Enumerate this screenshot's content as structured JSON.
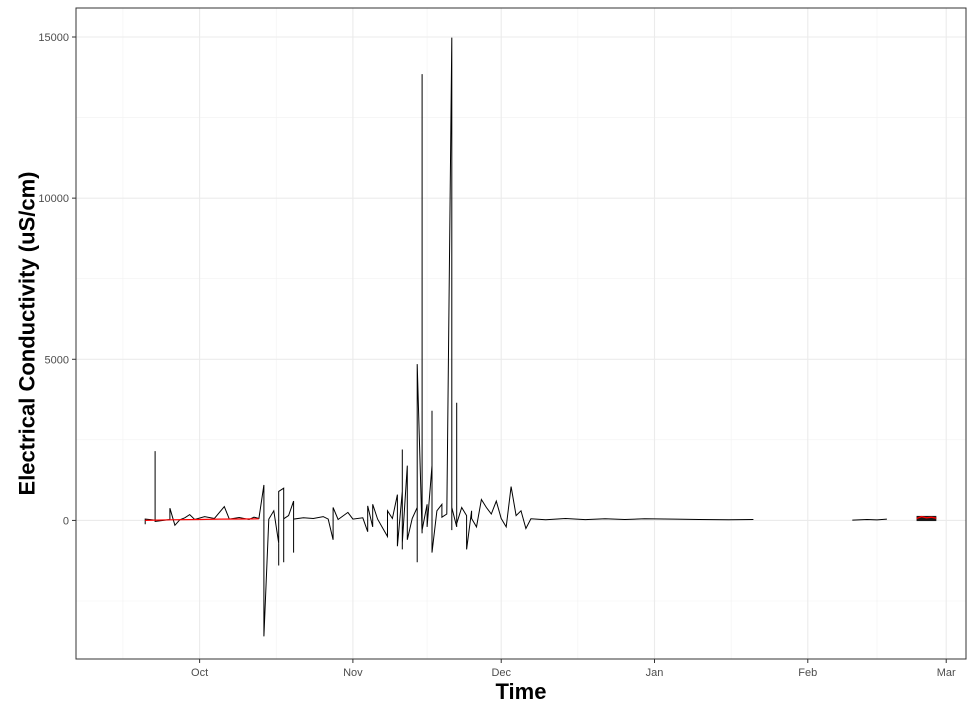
{
  "chart_data": {
    "type": "line",
    "xlabel": "Time",
    "ylabel": "Electrical Conductivity (uS/cm)",
    "title": "",
    "x_axis_kind": "date",
    "xlim": [
      "2017-09-06",
      "2018-03-05"
    ],
    "ylim": [
      -4300,
      15900
    ],
    "x_ticks": [
      {
        "date": "2017-10-01",
        "label": "Oct"
      },
      {
        "date": "2017-11-01",
        "label": "Nov"
      },
      {
        "date": "2017-12-01",
        "label": "Dec"
      },
      {
        "date": "2018-01-01",
        "label": "Jan"
      },
      {
        "date": "2018-02-01",
        "label": "Feb"
      },
      {
        "date": "2018-03-01",
        "label": "Mar"
      }
    ],
    "y_ticks": [
      0,
      5000,
      10000,
      15000
    ],
    "y_tick_labels": [
      "0",
      "5000",
      "10000",
      "15000"
    ],
    "grid": true,
    "legend": "none",
    "series": [
      {
        "color": "#000000",
        "segments": [
          [
            [
              "2017-09-20",
              -120
            ],
            [
              "2017-09-20",
              40
            ],
            [
              "2017-09-22",
              10
            ],
            [
              "2017-09-22",
              2150
            ],
            [
              "2017-09-22",
              -30
            ],
            [
              "2017-09-25",
              30
            ],
            [
              "2017-09-25",
              380
            ],
            [
              "2017-09-26",
              -150
            ],
            [
              "2017-09-27",
              20
            ],
            [
              "2017-09-28",
              80
            ],
            [
              "2017-09-29",
              180
            ],
            [
              "2017-09-30",
              30
            ],
            [
              "2017-10-02",
              120
            ],
            [
              "2017-10-04",
              60
            ],
            [
              "2017-10-06",
              430
            ],
            [
              "2017-10-07",
              40
            ],
            [
              "2017-10-09",
              90
            ],
            [
              "2017-10-11",
              30
            ],
            [
              "2017-10-12",
              100
            ],
            [
              "2017-10-13",
              60
            ],
            [
              "2017-10-14",
              1100
            ],
            [
              "2017-10-14",
              -3600
            ],
            [
              "2017-10-15",
              40
            ],
            [
              "2017-10-16",
              300
            ],
            [
              "2017-10-17",
              -700
            ],
            [
              "2017-10-17",
              650
            ],
            [
              "2017-10-17",
              -1400
            ],
            [
              "2017-10-17",
              900
            ],
            [
              "2017-10-18",
              1000
            ],
            [
              "2017-10-18",
              -1300
            ],
            [
              "2017-10-18",
              50
            ],
            [
              "2017-10-19",
              150
            ],
            [
              "2017-10-20",
              600
            ],
            [
              "2017-10-20",
              -1000
            ],
            [
              "2017-10-20",
              40
            ],
            [
              "2017-10-22",
              80
            ],
            [
              "2017-10-24",
              60
            ],
            [
              "2017-10-26",
              120
            ],
            [
              "2017-10-27",
              40
            ],
            [
              "2017-10-28",
              -600
            ],
            [
              "2017-10-28",
              400
            ],
            [
              "2017-10-29",
              30
            ],
            [
              "2017-10-31",
              250
            ],
            [
              "2017-11-01",
              40
            ],
            [
              "2017-11-03",
              80
            ],
            [
              "2017-11-04",
              -350
            ],
            [
              "2017-11-04",
              450
            ],
            [
              "2017-11-05",
              -200
            ],
            [
              "2017-11-05",
              500
            ],
            [
              "2017-11-06",
              40
            ],
            [
              "2017-11-08",
              -500
            ],
            [
              "2017-11-08",
              300
            ],
            [
              "2017-11-09",
              60
            ],
            [
              "2017-11-10",
              800
            ],
            [
              "2017-11-10",
              -800
            ],
            [
              "2017-11-11",
              900
            ],
            [
              "2017-11-11",
              -900
            ],
            [
              "2017-11-11",
              2200
            ],
            [
              "2017-11-11",
              -700
            ],
            [
              "2017-11-12",
              1700
            ],
            [
              "2017-11-12",
              -600
            ],
            [
              "2017-11-13",
              60
            ],
            [
              "2017-11-14",
              400
            ],
            [
              "2017-11-14",
              -1300
            ],
            [
              "2017-11-14",
              4850
            ],
            [
              "2017-11-15",
              -400
            ],
            [
              "2017-11-15",
              13850
            ],
            [
              "2017-11-15",
              -300
            ],
            [
              "2017-11-16",
              500
            ],
            [
              "2017-11-16",
              -200
            ],
            [
              "2017-11-17",
              1700
            ],
            [
              "2017-11-17",
              -400
            ],
            [
              "2017-11-17",
              3400
            ],
            [
              "2017-11-17",
              -1000
            ],
            [
              "2017-11-18",
              300
            ],
            [
              "2017-11-19",
              500
            ],
            [
              "2017-11-19",
              100
            ],
            [
              "2017-11-20",
              200
            ],
            [
              "2017-11-21",
              14980
            ],
            [
              "2017-11-21",
              -300
            ],
            [
              "2017-11-21",
              400
            ],
            [
              "2017-11-22",
              -200
            ],
            [
              "2017-11-22",
              3650
            ],
            [
              "2017-11-22",
              -100
            ],
            [
              "2017-11-23",
              400
            ],
            [
              "2017-11-24",
              150
            ],
            [
              "2017-11-24",
              -900
            ],
            [
              "2017-11-25",
              300
            ],
            [
              "2017-11-25",
              60
            ],
            [
              "2017-11-26",
              -200
            ],
            [
              "2017-11-27",
              650
            ],
            [
              "2017-11-28",
              400
            ],
            [
              "2017-11-29",
              200
            ],
            [
              "2017-11-30",
              600
            ],
            [
              "2017-12-01",
              60
            ],
            [
              "2017-12-02",
              -200
            ],
            [
              "2017-12-03",
              1050
            ],
            [
              "2017-12-04",
              150
            ],
            [
              "2017-12-05",
              300
            ],
            [
              "2017-12-06",
              -250
            ],
            [
              "2017-12-07",
              50
            ],
            [
              "2017-12-10",
              20
            ],
            [
              "2017-12-14",
              60
            ],
            [
              "2017-12-18",
              25
            ],
            [
              "2017-12-22",
              50
            ],
            [
              "2017-12-26",
              30
            ],
            [
              "2017-12-30",
              50
            ],
            [
              "2018-01-05",
              40
            ],
            [
              "2018-01-10",
              30
            ],
            [
              "2018-01-16",
              20
            ],
            [
              "2018-01-21",
              30
            ]
          ],
          [
            [
              "2018-02-10",
              10
            ],
            [
              "2018-02-13",
              30
            ],
            [
              "2018-02-15",
              15
            ],
            [
              "2018-02-17",
              40
            ]
          ]
        ]
      },
      {
        "color": "#ff0000",
        "segments": [
          [
            [
              "2017-09-20",
              0
            ],
            [
              "2017-09-25",
              20
            ],
            [
              "2017-10-01",
              30
            ],
            [
              "2017-10-05",
              40
            ],
            [
              "2017-10-10",
              45
            ],
            [
              "2017-10-13",
              50
            ]
          ],
          [
            [
              "2018-02-23",
              60
            ],
            [
              "2018-02-24",
              120
            ],
            [
              "2018-02-25",
              80
            ],
            [
              "2018-02-26",
              100
            ],
            [
              "2018-02-27",
              70
            ]
          ]
        ]
      }
    ],
    "band": {
      "color": "#1a1a1a",
      "x_start": "2018-02-23",
      "x_end": "2018-02-27",
      "y_min": -20,
      "y_max": 140
    }
  }
}
